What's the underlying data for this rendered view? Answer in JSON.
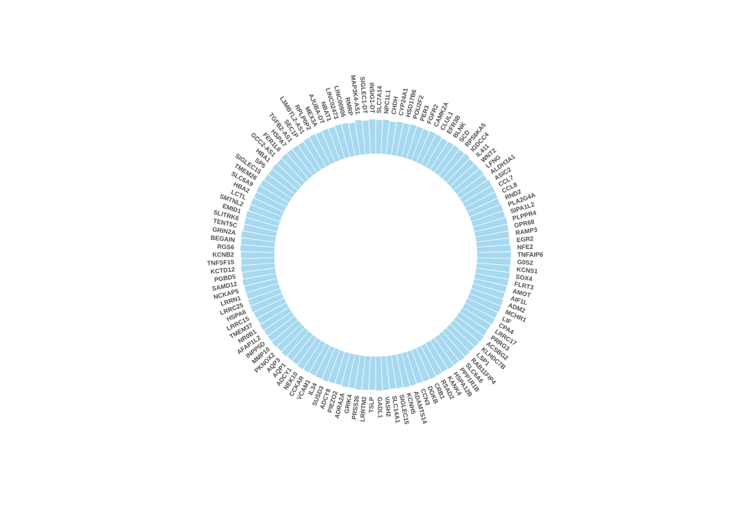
{
  "chart_data": {
    "type": "bar",
    "layout": "circular",
    "title": "",
    "xlabel": "",
    "ylabel": "",
    "ylim": [
      0,
      1
    ],
    "grid": false,
    "legend": "none",
    "bar_color": "#a6d8f0",
    "label_color": "#4d4d4d",
    "categories": [
      "RMRP",
      "MAP3K4-AS1",
      "SIGLEC1-DT",
      "INSIG1-DT",
      "SLC7A14",
      "NPC1L1",
      "CHDH",
      "CYP24A1",
      "HSD17B6",
      "POU2F2",
      "PER3",
      "FGFR2",
      "CAMK2A",
      "CLUL1",
      "EFR3B",
      "BLNK",
      "SCD",
      "RPS6KA5",
      "IGDCC4",
      "IL411",
      "WNT2",
      "LFNG",
      "ALDH3A1",
      "ASIC2",
      "CCL7",
      "CCL8",
      "RND2",
      "PLA2G4A",
      "SIPA1L2",
      "PLPPR4",
      "GPR68",
      "RAMP3",
      "EGR2",
      "NFE2",
      "TNFAIP6",
      "G0S2",
      "KCNS1",
      "SOX4",
      "FLRT3",
      "AMOT",
      "AIF1L",
      "ADM2",
      "MCHR1",
      "LIF",
      "CPA4",
      "LRRC17",
      "PRRG3",
      "ACSBG2",
      "KLHDC7B",
      "LSP1",
      "RAB11FIP4",
      "SLC6A6",
      "PPP1R1B",
      "HSPA12B",
      "KANK4",
      "RSAD2",
      "CRB1",
      "DGKB",
      "CCN3",
      "ADAMTS14",
      "KCNH5",
      "SIGLEC15",
      "SLC14A1",
      "VASH2",
      "GADL1",
      "TSLP",
      "LRRTM2",
      "PRSS35",
      "GRIK4",
      "ADRA2A",
      "PIEZO2",
      "ADCY8",
      "SUSD3",
      "IL34",
      "VCAM1",
      "CCKAR",
      "NEK10",
      "ADCY1",
      "AQP1",
      "AQP3",
      "PKNOX2",
      "MMP10",
      "INPP5D",
      "AFAP1L2",
      "NR0B1",
      "TMEM37",
      "LRRC15",
      "HSPA6",
      "LRRC25",
      "LRRN1",
      "NCKAP5",
      "SAMD12",
      "PGBD5",
      "KCTD12",
      "TNFSF15",
      "KCNB2",
      "RGS6",
      "BEGAIN",
      "GRIN2A",
      "TENT5C",
      "SLITRK6",
      "EMID1",
      "SMTNL2",
      "LCTL",
      "HBA2",
      "SLC6A9",
      "TMEM26",
      "SIGLEC15",
      "SP5",
      "HBA1",
      "GCC2-AS1",
      "FER1L6",
      "HSPA7",
      "TGFB2-AS1",
      "SEC1P",
      "L3MBTL2-AS1",
      "RPLP0P2",
      "MEX3A",
      "AJUBA-DT",
      "NBAT1",
      "LINC02473",
      "LINC00906"
    ],
    "values": [
      0.94,
      1.0,
      0.96,
      0.99,
      0.97,
      0.98,
      0.95,
      0.97,
      0.96,
      0.98,
      0.97,
      0.96,
      0.98,
      0.97,
      0.95,
      0.96,
      0.97,
      0.96,
      0.98,
      0.95,
      0.96,
      0.97,
      0.96,
      0.98,
      0.97,
      0.96,
      0.95,
      0.97,
      0.96,
      0.98,
      0.97,
      0.96,
      0.95,
      0.97,
      0.98,
      0.97,
      0.96,
      0.98,
      0.97,
      0.96,
      0.95,
      0.97,
      0.98,
      0.96,
      0.97,
      0.95,
      0.96,
      0.98,
      0.97,
      0.96,
      0.97,
      0.98,
      0.96,
      0.97,
      0.95,
      0.96,
      0.98,
      0.97,
      0.96,
      0.97,
      0.98,
      0.96,
      0.95,
      0.97,
      0.98,
      0.96,
      0.97,
      0.98,
      0.96,
      0.97,
      0.95,
      0.96,
      0.98,
      0.97,
      0.96,
      0.97,
      0.98,
      0.96,
      0.95,
      0.97,
      0.96,
      0.98,
      0.97,
      0.96,
      0.97,
      0.95,
      0.96,
      0.98,
      0.97,
      0.96,
      0.97,
      0.98,
      0.96,
      0.97,
      0.95,
      0.96,
      0.98,
      0.97,
      0.99,
      0.96,
      0.97,
      0.98,
      0.96,
      0.97,
      0.96,
      0.98,
      0.97,
      0.96,
      0.95,
      0.97,
      0.96,
      0.98,
      0.97,
      0.96,
      0.95,
      0.97,
      0.98,
      0.96,
      0.97,
      0.96,
      0.98,
      0.97
    ]
  }
}
